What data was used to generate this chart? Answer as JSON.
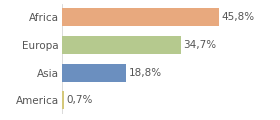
{
  "categories": [
    "Africa",
    "Europa",
    "Asia",
    "America"
  ],
  "values": [
    45.8,
    34.7,
    18.8,
    0.7
  ],
  "labels": [
    "45,8%",
    "34,7%",
    "18,8%",
    "0,7%"
  ],
  "bar_colors": [
    "#e8a97e",
    "#b5c98e",
    "#6b8fbf",
    "#d4c87a"
  ],
  "background_color": "#ffffff",
  "xlim": [
    0,
    62
  ],
  "bar_height": 0.65,
  "label_fontsize": 7.5,
  "tick_fontsize": 7.5
}
